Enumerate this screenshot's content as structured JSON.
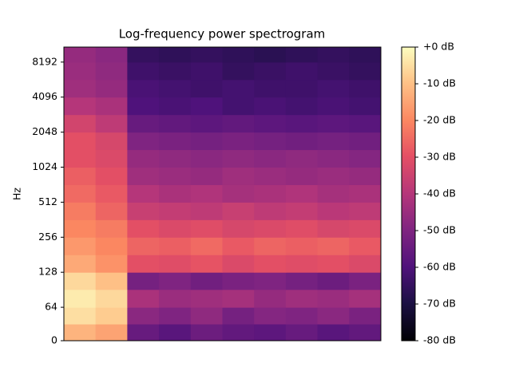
{
  "chart_data": {
    "type": "heatmap",
    "title": "Log-frequency power spectrogram",
    "y_label": "Hz",
    "y_scale": "symlog",
    "linthresh": 64,
    "ylim": [
      0,
      11025
    ],
    "yticks": [
      0,
      64,
      128,
      256,
      512,
      1024,
      2048,
      4096,
      8192
    ],
    "y_edges": [
      0,
      32,
      64,
      91,
      128,
      181,
      256,
      362,
      512,
      724,
      1024,
      1448,
      2048,
      2896,
      4096,
      5793,
      8192,
      11025
    ],
    "z": [
      [
        -12,
        -15,
        -55,
        -58,
        -54,
        -56,
        -57,
        -55,
        -58,
        -56
      ],
      [
        -5,
        -8,
        -48,
        -50,
        -47,
        -52,
        -49,
        -50,
        -48,
        -51
      ],
      [
        -3,
        -6,
        -42,
        -45,
        -44,
        -43,
        -46,
        -44,
        -45,
        -43
      ],
      [
        -6,
        -10,
        -52,
        -50,
        -53,
        -51,
        -50,
        -52,
        -54,
        -51
      ],
      [
        -14,
        -18,
        -30,
        -31,
        -29,
        -32,
        -30,
        -31,
        -30,
        -32
      ],
      [
        -17,
        -20,
        -26,
        -27,
        -25,
        -28,
        -26,
        -27,
        -26,
        -28
      ],
      [
        -20,
        -22,
        -30,
        -32,
        -31,
        -33,
        -32,
        -31,
        -33,
        -32
      ],
      [
        -22,
        -26,
        -36,
        -37,
        -38,
        -36,
        -38,
        -37,
        -39,
        -38
      ],
      [
        -25,
        -28,
        -40,
        -42,
        -41,
        -43,
        -42,
        -41,
        -43,
        -42
      ],
      [
        -27,
        -30,
        -44,
        -45,
        -46,
        -44,
        -45,
        -46,
        -45,
        -46
      ],
      [
        -30,
        -32,
        -46,
        -47,
        -48,
        -47,
        -48,
        -47,
        -48,
        -49
      ],
      [
        -30,
        -33,
        -50,
        -51,
        -52,
        -51,
        -52,
        -53,
        -52,
        -53
      ],
      [
        -34,
        -38,
        -55,
        -56,
        -57,
        -56,
        -57,
        -58,
        -57,
        -58
      ],
      [
        -40,
        -42,
        -60,
        -61,
        -60,
        -62,
        -61,
        -62,
        -61,
        -62
      ],
      [
        -44,
        -46,
        -61,
        -62,
        -63,
        -62,
        -63,
        -63,
        -62,
        -63
      ],
      [
        -45,
        -47,
        -63,
        -64,
        -63,
        -65,
        -64,
        -63,
        -64,
        -65
      ],
      [
        -46,
        -48,
        -65,
        -66,
        -65,
        -66,
        -67,
        -66,
        -65,
        -66
      ]
    ],
    "cmap": "magma",
    "colorbar": {
      "lim": [
        -80,
        0
      ],
      "ticks": [
        {
          "value": 0,
          "label": "+0 dB"
        },
        {
          "value": -10,
          "label": "-10 dB"
        },
        {
          "value": -20,
          "label": "-20 dB"
        },
        {
          "value": -30,
          "label": "-30 dB"
        },
        {
          "value": -40,
          "label": "-40 dB"
        },
        {
          "value": -50,
          "label": "-50 dB"
        },
        {
          "value": -60,
          "label": "-60 dB"
        },
        {
          "value": -70,
          "label": "-70 dB"
        },
        {
          "value": -80,
          "label": "-80 dB"
        }
      ]
    }
  }
}
